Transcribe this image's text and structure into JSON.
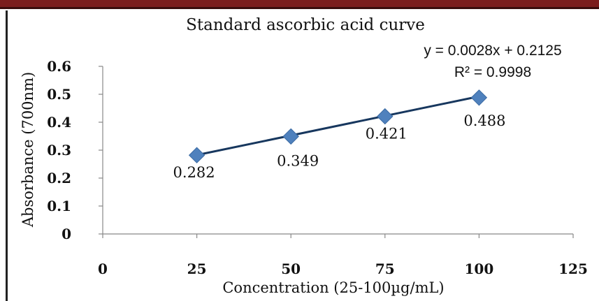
{
  "chart_data": {
    "type": "scatter",
    "title": "Standard ascorbic acid curve",
    "xlabel": "Concentration (25-100µg/mL)",
    "ylabel": "Absorbance (700nm)",
    "xlim": [
      0,
      125
    ],
    "ylim": [
      0,
      0.6
    ],
    "xticks": [
      "0",
      "25",
      "50",
      "75",
      "100",
      "125"
    ],
    "yticks": [
      "0",
      "0.1",
      "0.2",
      "0.3",
      "0.4",
      "0.5",
      "0.6"
    ],
    "x": [
      25,
      50,
      75,
      100
    ],
    "y": [
      0.282,
      0.349,
      0.421,
      0.488
    ],
    "data_labels": [
      "0.282",
      "0.349",
      "0.421",
      "0.488"
    ],
    "trendline": {
      "type": "linear",
      "slope": 0.0028,
      "intercept": 0.2125,
      "equation": "y = 0.0028x + 0.2125",
      "r_squared": "R² = 0.9998"
    },
    "grid": false,
    "marker_color": "#4f81bd",
    "trendline_color": "#17375e"
  }
}
